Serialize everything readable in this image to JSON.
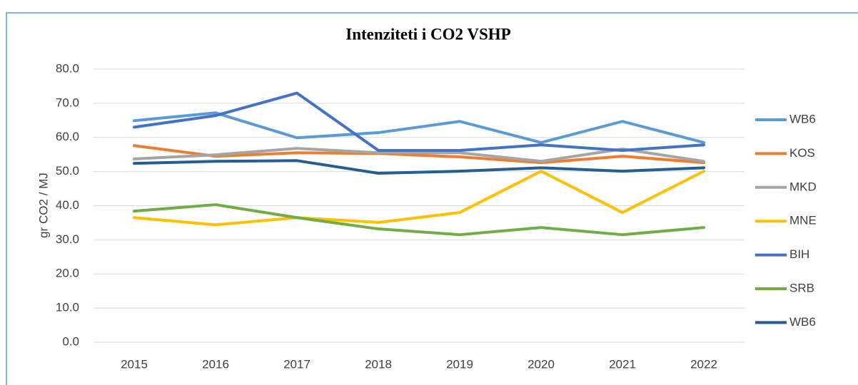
{
  "chart_data": {
    "type": "line",
    "title": "Intenziteti i CO2 VSHP",
    "y_label": "gr CO2 / MJ",
    "categories": [
      "2015",
      "2016",
      "2017",
      "2018",
      "2019",
      "2020",
      "2021",
      "2022"
    ],
    "ylim": [
      0,
      80
    ],
    "yticks": [
      {
        "value": 0,
        "label": "0.0"
      },
      {
        "value": 10,
        "label": "10.0"
      },
      {
        "value": 20,
        "label": "20.0"
      },
      {
        "value": 30,
        "label": "30.0"
      },
      {
        "value": 40,
        "label": "40.0"
      },
      {
        "value": 50,
        "label": "50.0"
      },
      {
        "value": 60,
        "label": "60.0"
      },
      {
        "value": 70,
        "label": "70.0"
      },
      {
        "value": 80,
        "label": "80.0"
      }
    ],
    "grid": true,
    "legend": "right",
    "series": [
      {
        "name": "WB6",
        "color": "#5b9bd5",
        "values": [
          64.9,
          67.2,
          59.9,
          61.4,
          64.7,
          58.5,
          64.7,
          58.5
        ]
      },
      {
        "name": "KOS",
        "color": "#ed7d31",
        "values": [
          57.6,
          54.5,
          55.5,
          55.3,
          54.3,
          52.6,
          54.5,
          52.6
        ]
      },
      {
        "name": "MKD",
        "color": "#a5a5a5",
        "values": [
          53.7,
          54.9,
          56.8,
          55.5,
          55.5,
          53.0,
          56.6,
          53.0
        ]
      },
      {
        "name": "MNE",
        "color": "#ffc000",
        "values": [
          36.5,
          34.4,
          36.5,
          35.1,
          38.0,
          50.1,
          38.0,
          50.1
        ]
      },
      {
        "name": "BIH",
        "color": "#4472c4",
        "values": [
          63.0,
          66.4,
          73.0,
          56.2,
          56.2,
          57.8,
          56.2,
          57.8
        ]
      },
      {
        "name": "SRB",
        "color": "#70ad47",
        "values": [
          38.4,
          40.3,
          36.5,
          33.2,
          31.5,
          33.6,
          31.5,
          33.6
        ]
      },
      {
        "name": "WB6",
        "color": "#255e91",
        "values": [
          52.4,
          53.0,
          53.2,
          49.5,
          50.1,
          51.1,
          50.1,
          51.1
        ]
      }
    ]
  }
}
